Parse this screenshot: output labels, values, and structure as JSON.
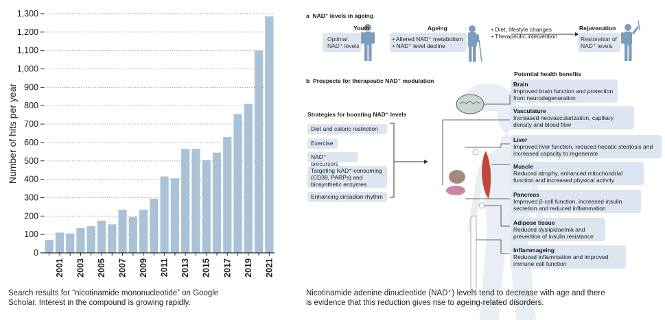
{
  "chart_data": {
    "type": "bar",
    "title": "",
    "xlabel": "",
    "ylabel": "Number of hits per year",
    "ylim": [
      0,
      1300
    ],
    "y_ticks": [
      "0",
      "100",
      "200",
      "300",
      "400",
      "500",
      "600",
      "700",
      "800",
      "900",
      "1,000",
      "1,100",
      "1,200",
      "1,300"
    ],
    "categories": [
      "2000",
      "2001",
      "2002",
      "2003",
      "2004",
      "2005",
      "2006",
      "2007",
      "2008",
      "2009",
      "2010",
      "2011",
      "2012",
      "2013",
      "2014",
      "2015",
      "2016",
      "2017",
      "2018",
      "2019",
      "2020",
      "2021"
    ],
    "x_tick_labels": [
      "2001",
      "2003",
      "2005",
      "2007",
      "2009",
      "2011",
      "2013",
      "2015",
      "2017",
      "2019",
      "2021"
    ],
    "values": [
      70,
      110,
      105,
      135,
      145,
      175,
      155,
      235,
      195,
      235,
      295,
      415,
      405,
      565,
      565,
      505,
      545,
      630,
      755,
      810,
      1100,
      1285
    ],
    "bar_color": "#a9c2d6",
    "grid": "horizontal dotted"
  },
  "left_caption": {
    "line1": "Search results for “nicotinamide mononucleotide” on Google",
    "line2": "Scholar. Interest in the compound is growing rapidly."
  },
  "right_caption": {
    "line1": "Nicotinamide adenine dinucleotide (NAD⁺) levels tend to decrease with age and there",
    "line2": "is evidence that this reduction gives rise to ageing-related disorders."
  },
  "panel_a": {
    "letter": "a",
    "title": "NAD⁺ levels in ageing",
    "youth": {
      "heading": "Youth",
      "line1": "Optimal",
      "line2": "NAD⁺ levels"
    },
    "ageing": {
      "heading": "Ageing",
      "bullet1": "• Altered NAD⁺ metabolism",
      "bullet2": "• NAD⁺ level decline"
    },
    "middle": {
      "bullet1": "• Diet, lifestyle changes",
      "bullet2": "• Therapeutic intervention"
    },
    "rejuvenation": {
      "heading": "Rejuvenation",
      "line1": "Restoration of",
      "line2": "NAD⁺ levels"
    }
  },
  "panel_b": {
    "letter": "b",
    "title": "Prospects for therapeutic NAD⁺ modulation",
    "strategies_title": "Strategies for boosting NAD⁺ levels",
    "strategies": [
      "Diet and caloric restriction",
      "Exercise",
      "NAD⁺ precursors",
      "Targeting NAD⁺-consuming (CD38, PARPs) and biosynthetic enzymes",
      "Enhancing circadian rhythm"
    ],
    "benefits_title": "Potential health benefits",
    "benefits": [
      {
        "name": "Brain",
        "text": "Improved brain function and protection from neurodegeneration"
      },
      {
        "name": "Vasculature",
        "text": "Increased neovascularization, capillary density and blood flow"
      },
      {
        "name": "Liver",
        "text": "Improved liver function, reduced hepatic steatosis and increased capacity to regenerate"
      },
      {
        "name": "Muscle",
        "text": "Reduced atrophy, enhanced mitochondrial function and increased physical activity"
      },
      {
        "name": "Pancreas",
        "text": "Improved β-cell function, increased insulin secretion and reduced inflammation"
      },
      {
        "name": "Adipose tissue",
        "text": "Reduced dyslipidaemia and prevention of insulin resistance"
      },
      {
        "name": "Inflammageing",
        "text": "Reduced inflammation and improved immune cell function"
      }
    ]
  }
}
